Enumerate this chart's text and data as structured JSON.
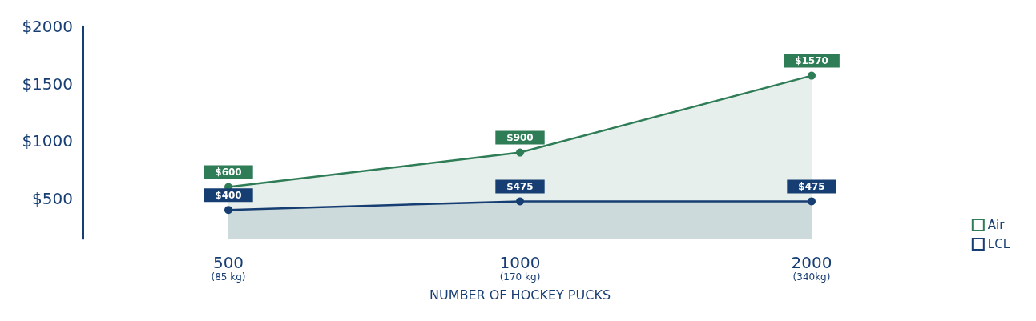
{
  "chart_data": {
    "type": "area",
    "xlabel": "NUMBER OF HOCKEY PUCKS",
    "categories": [
      "500\n(85 kg)",
      "1000\n(170 kg)",
      "2000\n(340kg)"
    ],
    "series": [
      {
        "name": "Air",
        "color": "#2e7d57",
        "values": [
          600,
          900,
          1570
        ],
        "value_labels": [
          "$600",
          "$900",
          "$1570"
        ]
      },
      {
        "name": "LCL",
        "color": "#173e73",
        "values": [
          400,
          475,
          475
        ],
        "value_labels": [
          "$400",
          "$475",
          "$475"
        ]
      }
    ],
    "ylim": [
      150,
      2000
    ],
    "yticks": [
      {
        "value": 500,
        "label": "$500"
      },
      {
        "value": 1000,
        "label": "$1000"
      },
      {
        "value": 1500,
        "label": "$1500"
      },
      {
        "value": 2000,
        "label": "$2000"
      }
    ],
    "grid": false,
    "legend": "bottom right",
    "marker": "circle",
    "line_style": "solid"
  }
}
